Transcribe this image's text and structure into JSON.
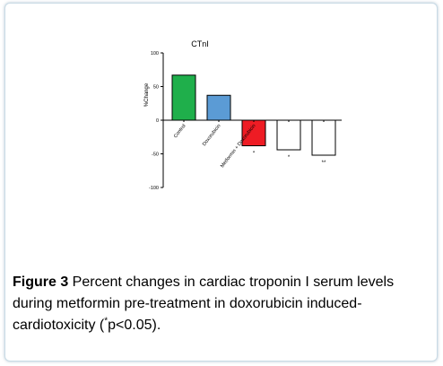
{
  "figure": {
    "caption_label": "Figure 3",
    "caption_text_before": " Percent changes in cardiac troponin I serum levels during metformin pre-treatment in doxorubicin induced-cardiotoxicity (",
    "caption_superscript": "*",
    "caption_text_after": "p<0.05)."
  },
  "chart_data": {
    "type": "bar",
    "title": "CTnI",
    "ylabel": "%Change",
    "xlabel": "",
    "ylim": [
      -100,
      100
    ],
    "yticks": [
      100,
      50,
      0,
      -50,
      -100
    ],
    "grid": false,
    "categories": [
      "Control",
      "Doxorubicin",
      "Metformin + Doxorubicin",
      "",
      ""
    ],
    "values": [
      67,
      37,
      -38,
      -44,
      -52
    ],
    "colors": [
      "#1faf4b",
      "#5b9bd5",
      "#ee1c24",
      "#ffffff",
      "#ffffff"
    ],
    "significance": [
      "",
      "",
      "*",
      "*",
      "**"
    ]
  }
}
